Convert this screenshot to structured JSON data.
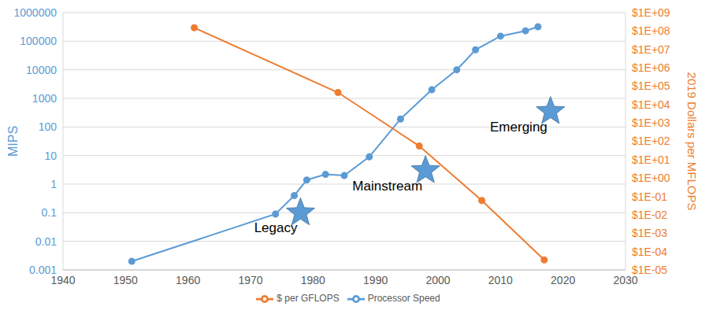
{
  "chart_data": {
    "type": "line",
    "log": "y",
    "grid": true,
    "legend": "bottom",
    "y_label": "MIPS",
    "y2_label": "2019 Dollars per MFLOPS",
    "xlim": [
      1940,
      2030
    ],
    "xticks": [
      1940,
      1950,
      1960,
      1970,
      1980,
      1990,
      2000,
      2010,
      2020,
      2030
    ],
    "ylim": [
      0.001,
      1000000
    ],
    "yticks": [
      0.001,
      0.01,
      0.1,
      1,
      10,
      100,
      1000,
      10000,
      100000,
      1000000
    ],
    "y2lim": [
      1e-05,
      1000000000
    ],
    "y2ticks": [
      {
        "value": 1e-05,
        "label": "$1E-05"
      },
      {
        "value": 0.0001,
        "label": "$1E-04"
      },
      {
        "value": 0.001,
        "label": "$1E-03"
      },
      {
        "value": 0.01,
        "label": "$1E-02"
      },
      {
        "value": 0.1,
        "label": "$1E-01"
      },
      {
        "value": 1,
        "label": "$1E+00"
      },
      {
        "value": 10,
        "label": "$1E+01"
      },
      {
        "value": 100,
        "label": "$1E+02"
      },
      {
        "value": 1000,
        "label": "$1E+03"
      },
      {
        "value": 10000,
        "label": "$1E+04"
      },
      {
        "value": 100000,
        "label": "$1E+05"
      },
      {
        "value": 1000000,
        "label": "$1E+06"
      },
      {
        "value": 10000000,
        "label": "$1E+07"
      },
      {
        "value": 100000000,
        "label": "$1E+08"
      },
      {
        "value": 1000000000,
        "label": "$1E+09"
      }
    ],
    "series": [
      {
        "name": "Processor Speed",
        "color": "#5b9bd5",
        "marker": "circle",
        "x": [
          1951,
          1974,
          1977,
          1979,
          1982,
          1985,
          1989,
          1994,
          1999,
          2003,
          2006,
          2010,
          2014,
          2016
        ],
        "values": [
          0.002,
          0.09,
          0.4,
          1.4,
          2.2,
          2.0,
          9,
          190,
          2000,
          10000,
          50000,
          150000,
          230000,
          320000
        ]
      },
      {
        "name": "$ per GFLOPS",
        "color": "#ed7d31",
        "marker": "circle",
        "axis": "y2",
        "x": [
          1961,
          1984,
          1997,
          2007,
          2017
        ],
        "values": [
          150000000,
          45000,
          55,
          0.06,
          3.5e-05
        ]
      }
    ],
    "annotations": [
      {
        "text": "Legacy",
        "x": 1978,
        "y": 0.1,
        "marker": "star",
        "color": "#5b9bd5"
      },
      {
        "text": "Mainstream",
        "x": 1998,
        "y": 3,
        "marker": "star",
        "color": "#5b9bd5"
      },
      {
        "text": "Emerging",
        "x": 2018,
        "y": 350,
        "marker": "star",
        "color": "#5b9bd5"
      }
    ]
  }
}
